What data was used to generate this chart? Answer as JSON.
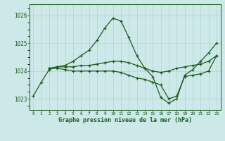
{
  "title": "Graphe pression niveau de la mer (hPa)",
  "bg_color": "#cce8e8",
  "grid_major_color": "#b8d8d8",
  "grid_minor_color": "#d4ecec",
  "line_color": "#1a5c1a",
  "xlim": [
    -0.5,
    23.5
  ],
  "ylim": [
    1022.6,
    1026.4
  ],
  "yticks": [
    1023,
    1024,
    1025,
    1026
  ],
  "xticks": [
    0,
    1,
    2,
    3,
    4,
    5,
    6,
    7,
    8,
    9,
    10,
    11,
    12,
    13,
    14,
    15,
    16,
    17,
    18,
    19,
    20,
    21,
    22,
    23
  ],
  "series1_x": [
    0,
    1,
    2,
    3,
    4,
    5,
    6,
    7,
    8,
    9,
    10,
    11,
    12,
    13,
    14,
    15,
    16,
    17,
    18,
    19,
    20,
    21,
    22,
    23
  ],
  "series1_y": [
    1023.1,
    1023.6,
    1024.05,
    1024.15,
    1024.2,
    1024.35,
    1024.55,
    1024.75,
    1025.1,
    1025.55,
    1025.9,
    1025.8,
    1025.2,
    1024.55,
    1024.1,
    1023.8,
    1023.05,
    1022.85,
    1023.0,
    1023.85,
    1024.05,
    1024.35,
    1024.65,
    1025.0
  ],
  "series2_x": [
    2,
    3,
    4,
    5,
    6,
    7,
    8,
    9,
    10,
    11,
    12,
    13,
    14,
    15,
    16,
    17,
    18,
    19,
    20,
    21,
    22,
    23
  ],
  "series2_y": [
    1024.1,
    1024.15,
    1024.15,
    1024.15,
    1024.2,
    1024.2,
    1024.25,
    1024.3,
    1024.35,
    1024.35,
    1024.3,
    1024.2,
    1024.1,
    1024.0,
    1023.95,
    1024.0,
    1024.1,
    1024.15,
    1024.2,
    1024.25,
    1024.35,
    1024.55
  ],
  "series3_x": [
    2,
    3,
    4,
    5,
    6,
    7,
    8,
    9,
    10,
    11,
    12,
    13,
    14,
    15,
    16,
    17,
    18,
    19,
    20,
    21,
    22,
    23
  ],
  "series3_y": [
    1024.1,
    1024.1,
    1024.05,
    1024.0,
    1024.0,
    1024.0,
    1024.0,
    1024.0,
    1024.0,
    1023.95,
    1023.85,
    1023.75,
    1023.7,
    1023.6,
    1023.5,
    1023.0,
    1023.1,
    1023.8,
    1023.85,
    1023.9,
    1024.0,
    1024.55
  ]
}
